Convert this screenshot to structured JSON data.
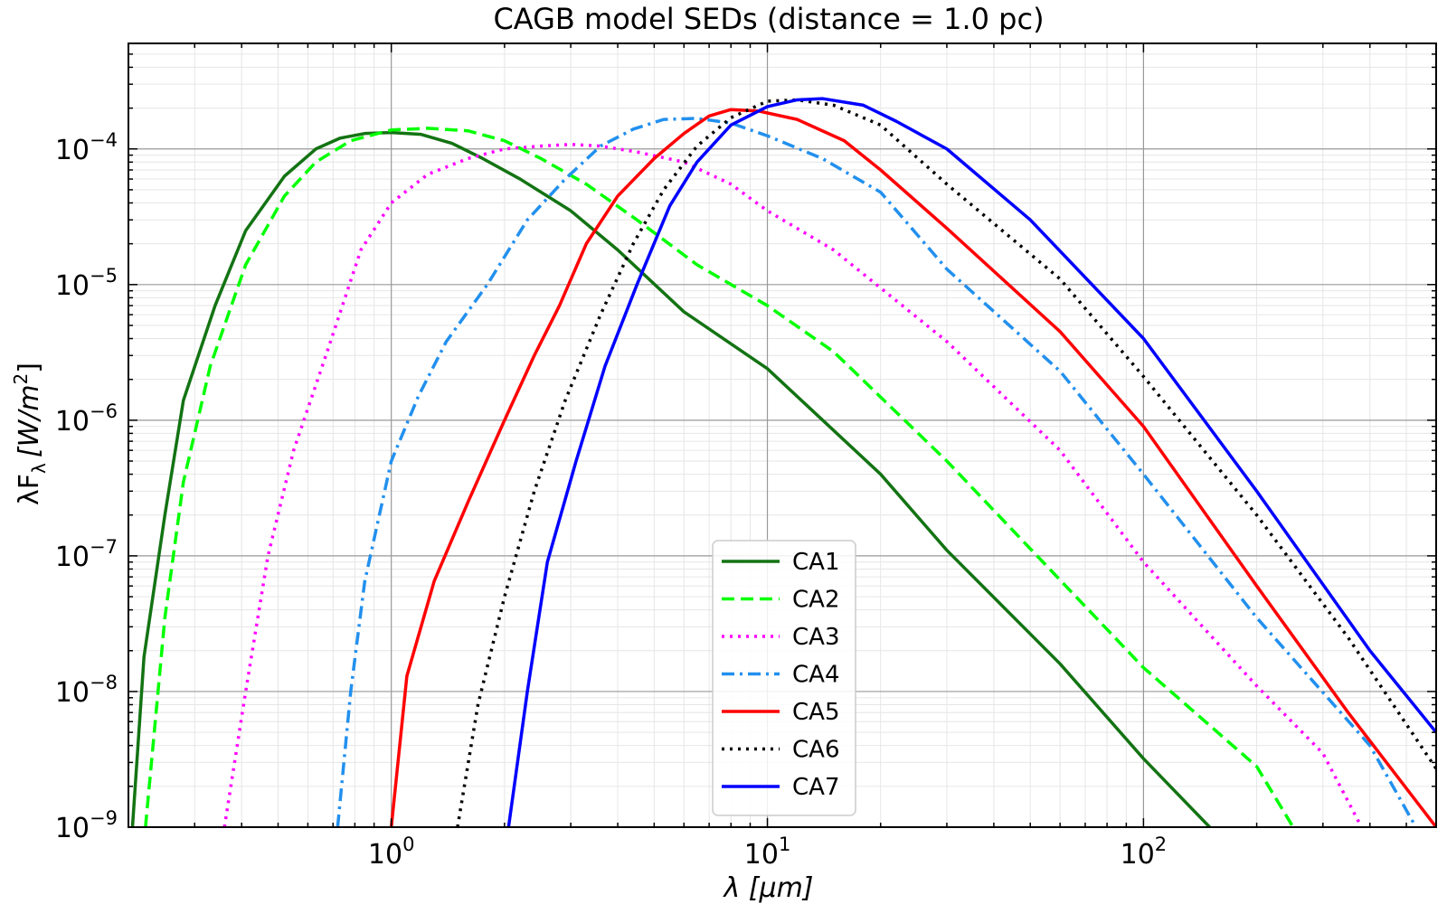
{
  "chart_data": {
    "type": "line",
    "title": "CAGB model SEDs (distance = 1.0 pc)",
    "xlabel": "λ [μm]",
    "ylabel": "λF",
    "ylabel_sub": "λ",
    "ylabel_units": "[W/m",
    "ylabel_units_sup": "2",
    "ylabel_units_close": "]",
    "xscale": "log",
    "yscale": "log",
    "xlim": [
      0.2,
      600
    ],
    "ylim": [
      1e-09,
      0.0006
    ],
    "grid": true,
    "legend_position": "bottom-center",
    "x_ticks": [
      {
        "value": 1,
        "base": "10",
        "exp": "0"
      },
      {
        "value": 10,
        "base": "10",
        "exp": "1"
      },
      {
        "value": 100,
        "base": "10",
        "exp": "2"
      }
    ],
    "y_ticks": [
      {
        "value": 0.0001,
        "base": "10",
        "exp": "−4"
      },
      {
        "value": 1e-05,
        "base": "10",
        "exp": "−5"
      },
      {
        "value": 1e-06,
        "base": "10",
        "exp": "−6"
      },
      {
        "value": 1e-07,
        "base": "10",
        "exp": "−7"
      },
      {
        "value": 1e-08,
        "base": "10",
        "exp": "−8"
      },
      {
        "value": 1e-09,
        "base": "10",
        "exp": "−9"
      }
    ],
    "series": [
      {
        "name": "CA1",
        "color": "#137313",
        "dash": "solid",
        "points": [
          [
            0.205,
            1e-09
          ],
          [
            0.22,
            1.8e-08
          ],
          [
            0.25,
            2e-07
          ],
          [
            0.28,
            1.4e-06
          ],
          [
            0.34,
            7e-06
          ],
          [
            0.41,
            2.5e-05
          ],
          [
            0.52,
            6.3e-05
          ],
          [
            0.63,
            0.0001
          ],
          [
            0.73,
            0.00012
          ],
          [
            0.85,
            0.00013
          ],
          [
            1.0,
            0.000132
          ],
          [
            1.2,
            0.000128
          ],
          [
            1.45,
            0.00011
          ],
          [
            1.75,
            8.5e-05
          ],
          [
            2.2,
            6e-05
          ],
          [
            3.0,
            3.5e-05
          ],
          [
            4.0,
            1.8e-05
          ],
          [
            6.0,
            6.3e-06
          ],
          [
            10,
            2.4e-06
          ],
          [
            20,
            4e-07
          ],
          [
            30,
            1.1e-07
          ],
          [
            60,
            1.6e-08
          ],
          [
            100,
            3.2e-09
          ],
          [
            150,
            1e-09
          ]
        ]
      },
      {
        "name": "CA2",
        "color": "#00ff00",
        "dash": "dashed",
        "points": [
          [
            0.222,
            1e-09
          ],
          [
            0.25,
            3.5e-08
          ],
          [
            0.28,
            3.5e-07
          ],
          [
            0.33,
            2.5e-06
          ],
          [
            0.41,
            1.4e-05
          ],
          [
            0.52,
            4.5e-05
          ],
          [
            0.63,
            8e-05
          ],
          [
            0.78,
            0.000115
          ],
          [
            1.0,
            0.000138
          ],
          [
            1.25,
            0.000142
          ],
          [
            1.6,
            0.000136
          ],
          [
            2.0,
            0.000115
          ],
          [
            2.5,
            8.5e-05
          ],
          [
            3.3,
            5.5e-05
          ],
          [
            4.5,
            3e-05
          ],
          [
            6.5,
            1.4e-05
          ],
          [
            10,
            7e-06
          ],
          [
            15,
            3.2e-06
          ],
          [
            30,
            5e-07
          ],
          [
            100,
            1.5e-08
          ],
          [
            200,
            2.8e-09
          ],
          [
            250,
            1e-09
          ]
        ]
      },
      {
        "name": "CA3",
        "color": "#ff00ff",
        "dash": "dotted",
        "points": [
          [
            0.36,
            1e-09
          ],
          [
            0.41,
            1e-08
          ],
          [
            0.47,
            1e-07
          ],
          [
            0.55,
            6e-07
          ],
          [
            0.67,
            3e-06
          ],
          [
            0.83,
            1.8e-05
          ],
          [
            1.0,
            4e-05
          ],
          [
            1.25,
            6.5e-05
          ],
          [
            1.6,
            8.5e-05
          ],
          [
            2.0,
            0.0001
          ],
          [
            2.5,
            0.000105
          ],
          [
            3.0,
            0.000108
          ],
          [
            3.6,
            0.000105
          ],
          [
            4.5,
            9.5e-05
          ],
          [
            6,
            8e-05
          ],
          [
            8,
            5.5e-05
          ],
          [
            10,
            3.5e-05
          ],
          [
            15,
            1.8e-05
          ],
          [
            30,
            3.8e-06
          ],
          [
            60,
            6e-07
          ],
          [
            100,
            9e-08
          ],
          [
            200,
            1.1e-08
          ],
          [
            300,
            3.5e-09
          ],
          [
            380,
            1e-09
          ]
        ]
      },
      {
        "name": "CA4",
        "color": "#2290ee",
        "dash": "dashdot",
        "points": [
          [
            0.72,
            1e-09
          ],
          [
            0.78,
            1e-08
          ],
          [
            0.85,
            6.5e-08
          ],
          [
            1.0,
            5e-07
          ],
          [
            1.18,
            1.5e-06
          ],
          [
            1.4,
            3.8e-06
          ],
          [
            1.8,
            1e-05
          ],
          [
            2.3,
            3e-05
          ],
          [
            2.9,
            6e-05
          ],
          [
            3.6,
            0.000105
          ],
          [
            4.4,
            0.00014
          ],
          [
            5.3,
            0.000165
          ],
          [
            6.5,
            0.000168
          ],
          [
            8,
            0.000155
          ],
          [
            10,
            0.000125
          ],
          [
            14,
            8.5e-05
          ],
          [
            20,
            4.8e-05
          ],
          [
            30,
            1.3e-05
          ],
          [
            60,
            2.3e-06
          ],
          [
            100,
            4e-07
          ],
          [
            200,
            3.5e-08
          ],
          [
            400,
            4e-09
          ],
          [
            530,
            1e-09
          ]
        ]
      },
      {
        "name": "CA5",
        "color": "#ff0000",
        "dash": "solid",
        "points": [
          [
            1.0,
            1e-09
          ],
          [
            1.1,
            1.3e-08
          ],
          [
            1.3,
            6.5e-08
          ],
          [
            1.6,
            2.5e-07
          ],
          [
            2.0,
            1e-06
          ],
          [
            2.4,
            3e-06
          ],
          [
            2.8,
            7e-06
          ],
          [
            3.3,
            2e-05
          ],
          [
            4.0,
            4.5e-05
          ],
          [
            5.0,
            8.5e-05
          ],
          [
            6.0,
            0.00013
          ],
          [
            7.0,
            0.000175
          ],
          [
            8.0,
            0.000195
          ],
          [
            9.5,
            0.00019
          ],
          [
            12,
            0.000165
          ],
          [
            16,
            0.000115
          ],
          [
            20,
            7e-05
          ],
          [
            30,
            2.6e-05
          ],
          [
            60,
            4.5e-06
          ],
          [
            100,
            9e-07
          ],
          [
            200,
            6e-08
          ],
          [
            350,
            7e-09
          ],
          [
            600,
            1e-09
          ]
        ]
      },
      {
        "name": "CA6",
        "color": "#000000",
        "dash": "dotted",
        "points": [
          [
            1.5,
            1e-09
          ],
          [
            1.7,
            8e-09
          ],
          [
            2.0,
            5e-08
          ],
          [
            2.4,
            3e-07
          ],
          [
            2.9,
            1.4e-06
          ],
          [
            3.6,
            6e-06
          ],
          [
            4.4,
            2e-05
          ],
          [
            5.3,
            5e-05
          ],
          [
            6.5,
            0.000105
          ],
          [
            8,
            0.00017
          ],
          [
            10,
            0.000225
          ],
          [
            12,
            0.00023
          ],
          [
            15,
            0.00021
          ],
          [
            20,
            0.00015
          ],
          [
            30,
            5.5e-05
          ],
          [
            60,
            1.1e-05
          ],
          [
            100,
            2.1e-06
          ],
          [
            200,
            2e-07
          ],
          [
            350,
            2.5e-08
          ],
          [
            600,
            2.7e-09
          ]
        ]
      },
      {
        "name": "CA7",
        "color": "#0000ff",
        "dash": "solid",
        "points": [
          [
            2.05,
            1e-09
          ],
          [
            2.3,
            1e-08
          ],
          [
            2.6,
            9e-08
          ],
          [
            3.1,
            5e-07
          ],
          [
            3.7,
            2.5e-06
          ],
          [
            4.5,
            1e-05
          ],
          [
            5.5,
            3.8e-05
          ],
          [
            6.5,
            8e-05
          ],
          [
            8,
            0.00015
          ],
          [
            10,
            0.000205
          ],
          [
            12,
            0.00023
          ],
          [
            14,
            0.000235
          ],
          [
            18,
            0.00021
          ],
          [
            22,
            0.00016
          ],
          [
            30,
            0.0001
          ],
          [
            50,
            3e-05
          ],
          [
            100,
            4e-06
          ],
          [
            200,
            3e-07
          ],
          [
            400,
            2e-08
          ],
          [
            600,
            5e-09
          ]
        ]
      }
    ]
  }
}
